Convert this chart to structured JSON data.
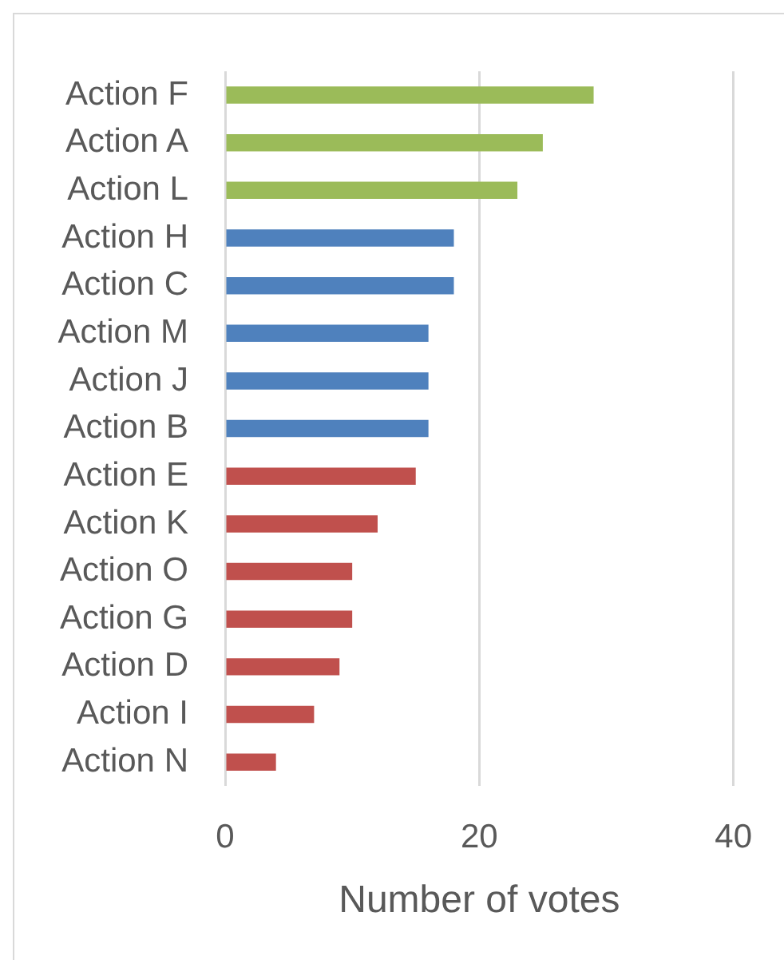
{
  "chart_data": {
    "type": "bar",
    "orientation": "horizontal",
    "categories": [
      "Action F",
      "Action A",
      "Action L",
      "Action H",
      "Action C",
      "Action M",
      "Action J",
      "Action B",
      "Action E",
      "Action K",
      "Action O",
      "Action G",
      "Action D",
      "Action I",
      "Action N"
    ],
    "values": [
      29,
      25,
      23,
      18,
      18,
      16,
      16,
      16,
      15,
      12,
      10,
      10,
      9,
      7,
      4
    ],
    "colors": [
      "#9bbb59",
      "#9bbb59",
      "#9bbb59",
      "#4f81bd",
      "#4f81bd",
      "#4f81bd",
      "#4f81bd",
      "#4f81bd",
      "#c0504d",
      "#c0504d",
      "#c0504d",
      "#c0504d",
      "#c0504d",
      "#c0504d",
      "#c0504d"
    ],
    "xlabel": "Number of votes",
    "xlim": [
      0,
      40
    ],
    "xticks": [
      0,
      20,
      40
    ],
    "grid": "x"
  }
}
